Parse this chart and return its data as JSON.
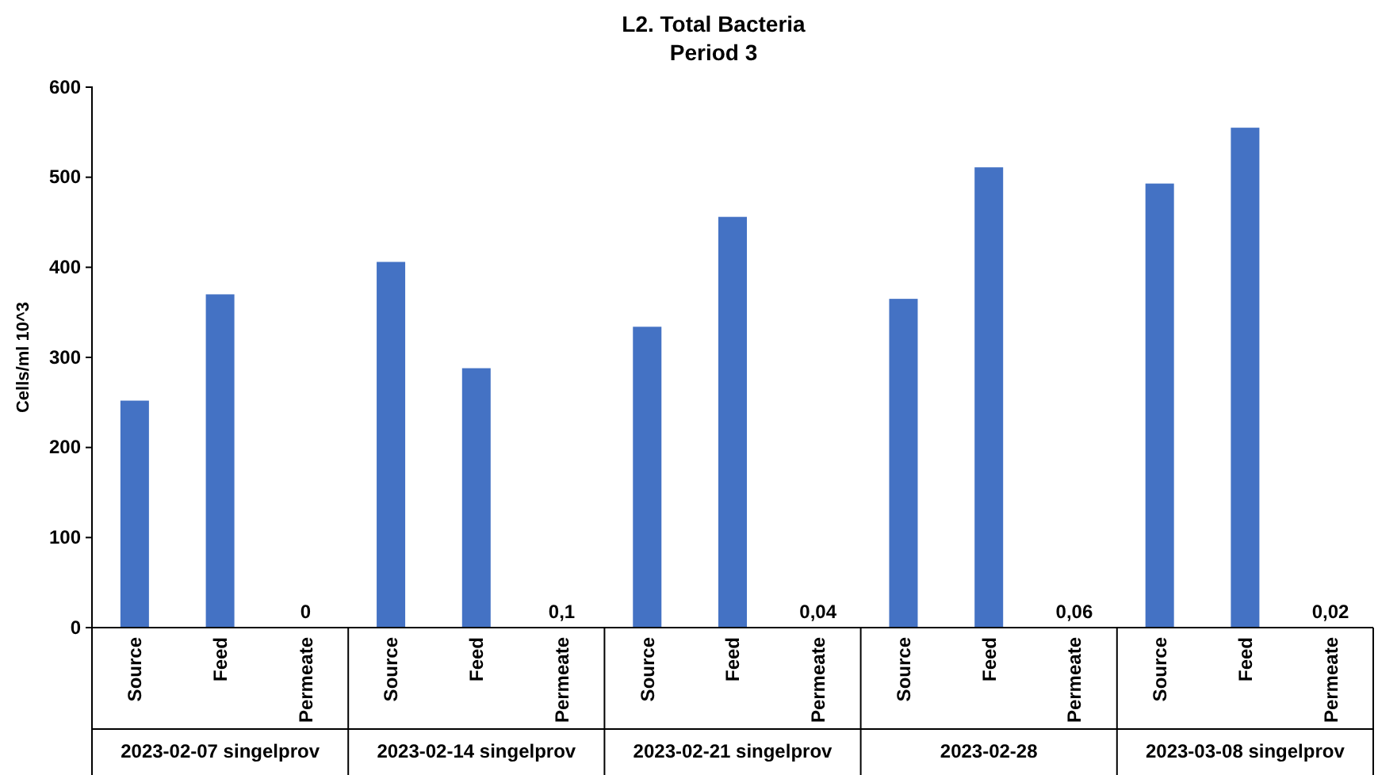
{
  "chart_data": {
    "type": "bar",
    "title": "L2. Total Bacteria",
    "subtitle": "Period 3",
    "ylabel": "Cells/ml 10^3",
    "categories": [
      "Source",
      "Feed",
      "Permeate",
      "Source",
      "Feed",
      "Permeate",
      "Source",
      "Feed",
      "Permeate",
      "Source",
      "Feed",
      "Permeate",
      "Source",
      "Feed",
      "Permeate"
    ],
    "values": [
      252,
      370,
      0,
      406,
      288,
      0.1,
      334,
      456,
      0.04,
      365,
      511,
      0.06,
      493,
      555,
      0.02
    ],
    "value_labels": [
      null,
      null,
      "0",
      null,
      null,
      "0,1",
      null,
      null,
      "0,04",
      null,
      null,
      "0,06",
      null,
      null,
      "0,02"
    ],
    "color": "#4472c4",
    "ylim": [
      0,
      600
    ],
    "yticks": [
      0,
      100,
      200,
      300,
      400,
      500,
      600
    ],
    "grid": false,
    "legend": false,
    "annotations": [
      "2023-02-07 singelprov",
      "2023-02-14 singelprov",
      "2023-02-21 singelprov",
      "2023-02-28",
      "2023-03-08 singelprov"
    ]
  }
}
